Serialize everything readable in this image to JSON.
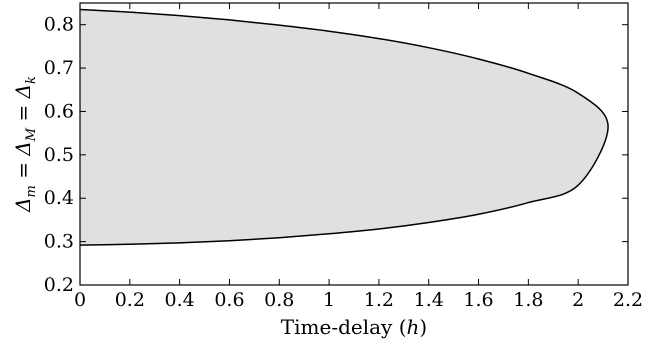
{
  "chart_data": {
    "type": "area",
    "title": "",
    "xlabel": "Time-delay (h)",
    "ylabel": "Δm = ΔM = Δk",
    "xlim": [
      0,
      2.2
    ],
    "ylim": [
      0.2,
      0.85
    ],
    "x_ticks": [
      "0",
      "0.2",
      "0.4",
      "0.6",
      "0.8",
      "1",
      "1.2",
      "1.4",
      "1.6",
      "1.8",
      "2",
      "2.2"
    ],
    "y_ticks": [
      "0.2",
      "0.3",
      "0.4",
      "0.5",
      "0.6",
      "0.7",
      "0.8"
    ],
    "grid": false,
    "legend": "none",
    "fill_color": "#e0e0e0",
    "line_color": "#000000",
    "region": {
      "description_values": "upper and lower boundary of the shaded stable region",
      "x": [
        0,
        0.2,
        0.4,
        0.6,
        0.8,
        1.0,
        1.2,
        1.4,
        1.6,
        1.8,
        2.0,
        2.12
      ],
      "upper": [
        0.835,
        0.829,
        0.821,
        0.811,
        0.799,
        0.785,
        0.768,
        0.747,
        0.721,
        0.688,
        0.642,
        0.565
      ],
      "lower": [
        0.292,
        0.294,
        0.297,
        0.302,
        0.309,
        0.318,
        0.329,
        0.344,
        0.363,
        0.39,
        0.43,
        0.565
      ]
    }
  }
}
